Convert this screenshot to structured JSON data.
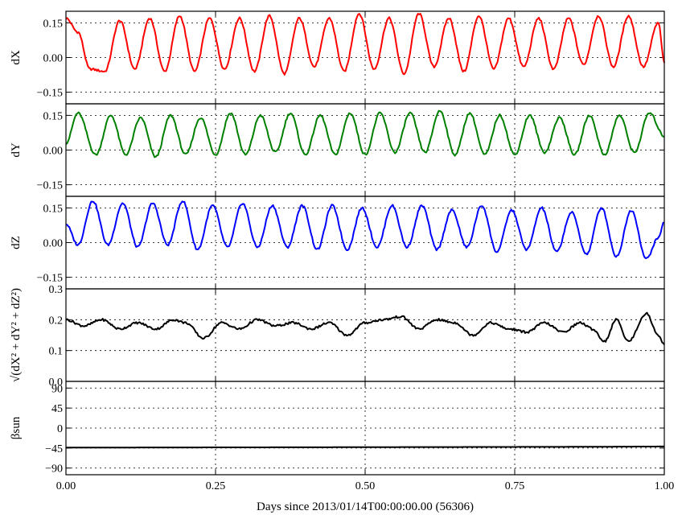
{
  "chart_data": [
    {
      "type": "line",
      "ylabel": "dX",
      "color": "#ff0000",
      "ylim": [
        -0.2,
        0.2
      ],
      "yticks": [
        0.15,
        0.0,
        -0.15
      ],
      "ytick_labels": [
        "0.15",
        "0.00",
        "−0.15"
      ],
      "grid": true,
      "series": [
        {
          "x": [
            0.0,
            0.02,
            0.04,
            0.065,
            0.09,
            0.115,
            0.14,
            0.165,
            0.19,
            0.215,
            0.24,
            0.265,
            0.29,
            0.315,
            0.34,
            0.365,
            0.39,
            0.415,
            0.44,
            0.465,
            0.49,
            0.515,
            0.54,
            0.565,
            0.59,
            0.615,
            0.64,
            0.665,
            0.69,
            0.715,
            0.74,
            0.765,
            0.79,
            0.815,
            0.84,
            0.865,
            0.89,
            0.915,
            0.94,
            0.965,
            0.99,
            1.0
          ],
          "values": [
            0.17,
            0.11,
            -0.05,
            -0.06,
            0.16,
            -0.05,
            0.17,
            -0.06,
            0.18,
            -0.06,
            0.17,
            -0.05,
            0.17,
            -0.06,
            0.18,
            -0.07,
            0.17,
            -0.04,
            0.17,
            -0.06,
            0.19,
            -0.05,
            0.17,
            -0.07,
            0.19,
            -0.04,
            0.17,
            -0.06,
            0.18,
            -0.05,
            0.17,
            -0.04,
            0.17,
            -0.05,
            0.17,
            -0.03,
            0.18,
            -0.04,
            0.18,
            -0.04,
            0.15,
            -0.02
          ]
        }
      ]
    },
    {
      "type": "line",
      "ylabel": "dY",
      "color": "#008000",
      "ylim": [
        -0.2,
        0.2
      ],
      "yticks": [
        0.15,
        0.0,
        -0.15
      ],
      "ytick_labels": [
        "0.15",
        "0.00",
        "−0.15"
      ],
      "grid": true,
      "series": [
        {
          "x": [
            0.0,
            0.02,
            0.05,
            0.075,
            0.1,
            0.125,
            0.15,
            0.175,
            0.2,
            0.225,
            0.25,
            0.275,
            0.3,
            0.325,
            0.35,
            0.375,
            0.4,
            0.425,
            0.45,
            0.475,
            0.5,
            0.525,
            0.55,
            0.575,
            0.6,
            0.625,
            0.65,
            0.675,
            0.7,
            0.725,
            0.75,
            0.775,
            0.8,
            0.825,
            0.85,
            0.875,
            0.9,
            0.925,
            0.95,
            0.975,
            1.0
          ],
          "values": [
            0.03,
            0.16,
            -0.02,
            0.15,
            -0.02,
            0.14,
            -0.03,
            0.15,
            -0.02,
            0.14,
            -0.02,
            0.16,
            -0.02,
            0.15,
            -0.01,
            0.16,
            -0.02,
            0.15,
            -0.02,
            0.16,
            -0.02,
            0.16,
            -0.01,
            0.16,
            -0.01,
            0.17,
            -0.02,
            0.16,
            -0.02,
            0.15,
            -0.02,
            0.15,
            -0.01,
            0.14,
            -0.02,
            0.15,
            -0.02,
            0.15,
            -0.01,
            0.16,
            0.06
          ]
        }
      ]
    },
    {
      "type": "line",
      "ylabel": "dZ",
      "color": "#0000ff",
      "ylim": [
        -0.2,
        0.2
      ],
      "yticks": [
        0.15,
        0.0,
        -0.15
      ],
      "ytick_labels": [
        "0.15",
        "0.00",
        "−0.15"
      ],
      "grid": true,
      "series": [
        {
          "x": [
            0.0,
            0.02,
            0.045,
            0.07,
            0.095,
            0.12,
            0.145,
            0.17,
            0.195,
            0.22,
            0.245,
            0.27,
            0.295,
            0.32,
            0.345,
            0.37,
            0.395,
            0.42,
            0.445,
            0.47,
            0.495,
            0.52,
            0.545,
            0.57,
            0.595,
            0.62,
            0.645,
            0.67,
            0.695,
            0.72,
            0.745,
            0.77,
            0.795,
            0.82,
            0.845,
            0.87,
            0.895,
            0.92,
            0.945,
            0.97,
            0.99,
            1.0
          ],
          "values": [
            0.08,
            -0.01,
            0.18,
            -0.01,
            0.17,
            -0.02,
            0.17,
            -0.01,
            0.18,
            -0.03,
            0.16,
            -0.02,
            0.17,
            -0.02,
            0.16,
            -0.02,
            0.16,
            -0.03,
            0.16,
            -0.03,
            0.15,
            -0.02,
            0.16,
            -0.02,
            0.16,
            -0.03,
            0.14,
            -0.02,
            0.16,
            -0.04,
            0.14,
            -0.03,
            0.15,
            -0.04,
            0.13,
            -0.05,
            0.15,
            -0.06,
            0.14,
            -0.07,
            0.02,
            0.09
          ]
        }
      ]
    },
    {
      "type": "line",
      "ylabel": "√(dX² + dY² + dZ²)",
      "color": "#000000",
      "ylim": [
        0.0,
        0.3
      ],
      "yticks": [
        0.3,
        0.2,
        0.1,
        0.0
      ],
      "ytick_labels": [
        "0.3",
        "0.2",
        "0.1",
        "0.0"
      ],
      "grid": true,
      "series": [
        {
          "x": [
            0.0,
            0.03,
            0.06,
            0.09,
            0.12,
            0.15,
            0.18,
            0.2,
            0.23,
            0.26,
            0.29,
            0.32,
            0.35,
            0.38,
            0.41,
            0.44,
            0.47,
            0.5,
            0.53,
            0.56,
            0.59,
            0.62,
            0.65,
            0.68,
            0.71,
            0.74,
            0.77,
            0.8,
            0.83,
            0.86,
            0.88,
            0.9,
            0.92,
            0.94,
            0.97,
            0.99,
            1.0
          ],
          "values": [
            0.2,
            0.18,
            0.2,
            0.17,
            0.19,
            0.17,
            0.2,
            0.19,
            0.14,
            0.19,
            0.17,
            0.2,
            0.18,
            0.19,
            0.17,
            0.19,
            0.15,
            0.19,
            0.2,
            0.21,
            0.17,
            0.2,
            0.19,
            0.15,
            0.19,
            0.17,
            0.16,
            0.19,
            0.16,
            0.19,
            0.17,
            0.13,
            0.2,
            0.13,
            0.22,
            0.15,
            0.12
          ]
        }
      ]
    },
    {
      "type": "line",
      "ylabel": "βsun",
      "color": "#000000",
      "ylim": [
        -105,
        105
      ],
      "yticks": [
        90,
        45,
        0,
        -45,
        -90
      ],
      "ytick_labels": [
        "90",
        "45",
        "0",
        "−45",
        "−90"
      ],
      "grid": true,
      "series": [
        {
          "x": [
            0.0,
            0.1,
            0.2,
            0.3,
            0.4,
            0.5,
            0.6,
            0.7,
            0.8,
            0.9,
            1.0
          ],
          "values": [
            -44,
            -43.8,
            -43.6,
            -43.4,
            -43.2,
            -43,
            -42.8,
            -42.6,
            -42.3,
            -42,
            -41.5
          ]
        }
      ]
    }
  ],
  "x_axis": {
    "xlim": [
      0.0,
      1.0
    ],
    "ticks": [
      0.0,
      0.25,
      0.5,
      0.75,
      1.0
    ],
    "tick_labels": [
      "0.00",
      "0.25",
      "0.50",
      "0.75",
      "1.00"
    ],
    "label": "Days since 2013/01/14T00:00:00.00 (56306)"
  }
}
